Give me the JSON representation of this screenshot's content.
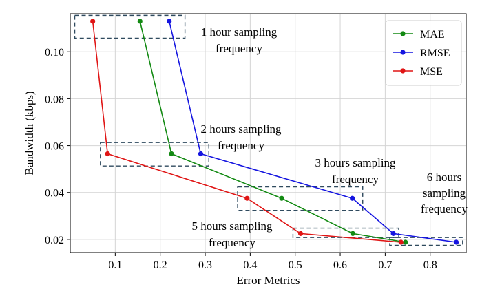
{
  "chart_data": {
    "type": "line",
    "xlabel": "Error Metrics",
    "ylabel": "Bandwidth (kbps)",
    "xlim": [
      0.0,
      0.88
    ],
    "ylim": [
      0.0144,
      0.1162
    ],
    "xticks": [
      0.1,
      0.2,
      0.3,
      0.4,
      0.5,
      0.6,
      0.7,
      0.8
    ],
    "xtick_labels": [
      "0.1",
      "0.2",
      "0.3",
      "0.4",
      "0.5",
      "0.6",
      "0.7",
      "0.8"
    ],
    "yticks": [
      0.02,
      0.04,
      0.06,
      0.08,
      0.1
    ],
    "ytick_labels": [
      "0.02",
      "0.04",
      "0.06",
      "0.08",
      "0.10"
    ],
    "grid": true,
    "legend_position": "top-right",
    "series": [
      {
        "name": "MAE",
        "color": "#138a13",
        "points": [
          [
            0.155,
            0.113
          ],
          [
            0.225,
            0.0565
          ],
          [
            0.47,
            0.0375
          ],
          [
            0.628,
            0.0225
          ],
          [
            0.745,
            0.0188
          ]
        ]
      },
      {
        "name": "RMSE",
        "color": "#1515e0",
        "points": [
          [
            0.22,
            0.113
          ],
          [
            0.29,
            0.0565
          ],
          [
            0.627,
            0.0375
          ],
          [
            0.718,
            0.0225
          ],
          [
            0.858,
            0.0188
          ]
        ]
      },
      {
        "name": "MSE",
        "color": "#e01515",
        "points": [
          [
            0.05,
            0.113
          ],
          [
            0.083,
            0.0565
          ],
          [
            0.393,
            0.0375
          ],
          [
            0.512,
            0.0225
          ],
          [
            0.735,
            0.0188
          ]
        ]
      }
    ],
    "annotations": [
      {
        "lines": [
          "1 hour sampling",
          "frequency"
        ],
        "box": {
          "x0": 0.01,
          "x1": 0.255,
          "y0": 0.1058,
          "y1": 0.1155
        }
      },
      {
        "lines": [
          "2 hours sampling",
          "frequency"
        ],
        "box": {
          "x0": 0.067,
          "x1": 0.308,
          "y0": 0.0513,
          "y1": 0.0613
        }
      },
      {
        "lines": [
          "3 hours sampling",
          "frequency"
        ],
        "box": {
          "x0": 0.372,
          "x1": 0.65,
          "y0": 0.0324,
          "y1": 0.0424
        }
      },
      {
        "lines": [
          "5 hours sampling",
          "frequency"
        ],
        "box": {
          "x0": 0.495,
          "x1": 0.73,
          "y0": 0.0208,
          "y1": 0.0248
        }
      },
      {
        "lines": [
          "6 hours",
          "sampling",
          "frequency"
        ],
        "box": {
          "x0": 0.71,
          "x1": 0.872,
          "y0": 0.0175,
          "y1": 0.0208
        }
      }
    ]
  }
}
